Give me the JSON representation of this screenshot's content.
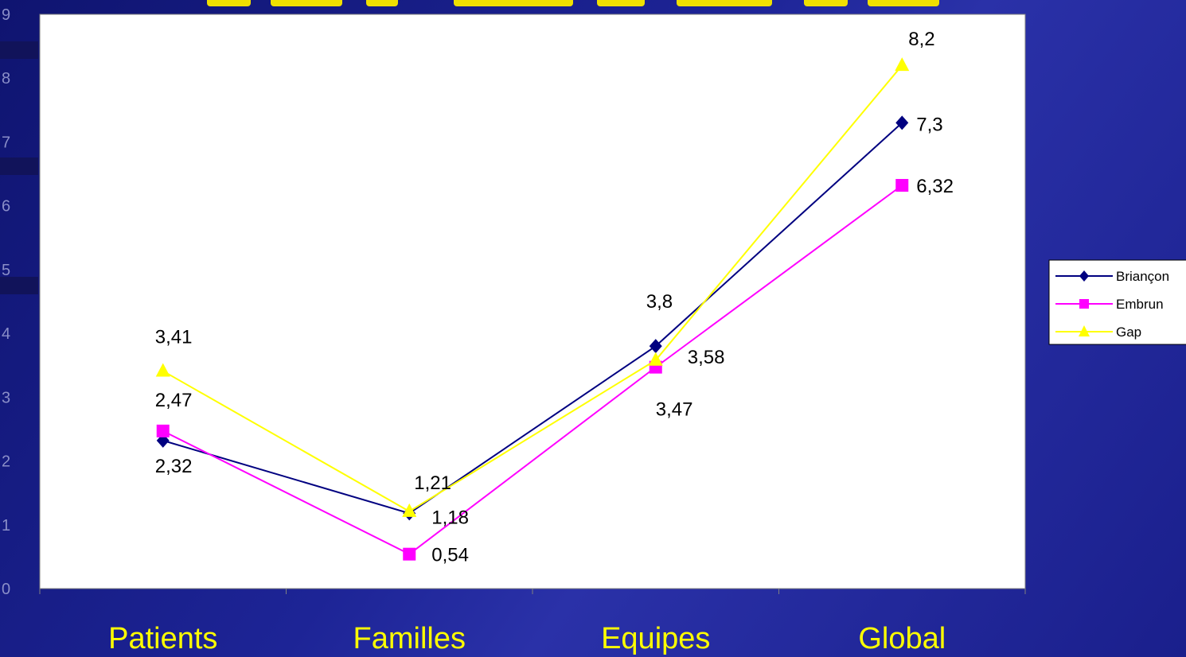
{
  "chart_data": {
    "type": "line",
    "categories": [
      "Patients",
      "Familles",
      "Equipes",
      "Global"
    ],
    "ylim": [
      0,
      9
    ],
    "yticks": [
      "0",
      "1",
      "2",
      "3",
      "4",
      "5",
      "6",
      "7",
      "8",
      "9"
    ],
    "grid": false,
    "legend_position": "right",
    "series": [
      {
        "name": "Briançon",
        "color": "#000080",
        "marker": "diamond",
        "values": [
          2.32,
          1.18,
          3.8,
          7.3
        ],
        "labels": [
          "2,32",
          "1,18",
          "3,8",
          "7,3"
        ]
      },
      {
        "name": "Embrun",
        "color": "#ff00ff",
        "marker": "square",
        "values": [
          2.47,
          0.54,
          3.47,
          6.32
        ],
        "labels": [
          "2,47",
          "0,54",
          "3,47",
          "6,32"
        ]
      },
      {
        "name": "Gap",
        "color": "#ffff00",
        "marker": "triangle",
        "values": [
          3.41,
          1.21,
          3.58,
          8.2
        ],
        "labels": [
          "3,41",
          "1,21",
          "3,58",
          "8,2"
        ]
      }
    ]
  }
}
